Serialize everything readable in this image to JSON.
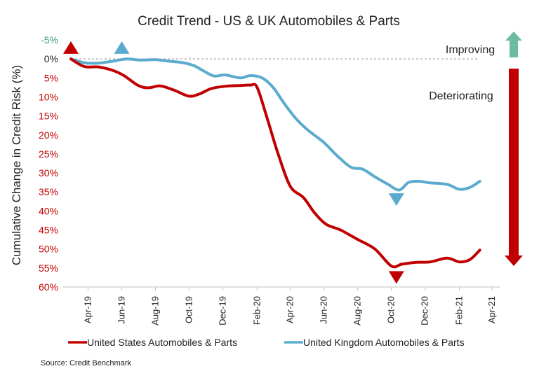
{
  "chart_data": {
    "type": "line",
    "title": "Credit Trend - US & UK Automobiles & Parts",
    "ylabel": "Cumulative Change in Credit Risk (%)",
    "xlabel": "",
    "y_axis_inverted": true,
    "ylim": [
      -5,
      60
    ],
    "y_ticks": [
      {
        "value": -5,
        "label": "-5%"
      },
      {
        "value": 0,
        "label": "0%"
      },
      {
        "value": 5,
        "label": "5%"
      },
      {
        "value": 10,
        "label": "10%"
      },
      {
        "value": 15,
        "label": "15%"
      },
      {
        "value": 20,
        "label": "20%"
      },
      {
        "value": 25,
        "label": "25%"
      },
      {
        "value": 30,
        "label": "30%"
      },
      {
        "value": 35,
        "label": "35%"
      },
      {
        "value": 40,
        "label": "40%"
      },
      {
        "value": 45,
        "label": "45%"
      },
      {
        "value": 50,
        "label": "50%"
      },
      {
        "value": 55,
        "label": "55%"
      },
      {
        "value": 60,
        "label": "60%"
      }
    ],
    "x_range": [
      "2019-02-15",
      "2021-04-15"
    ],
    "x_ticks": [
      {
        "date": "2019-04-01",
        "label": "Apr-19"
      },
      {
        "date": "2019-06-01",
        "label": "Jun-19"
      },
      {
        "date": "2019-08-01",
        "label": "Aug-19"
      },
      {
        "date": "2019-10-01",
        "label": "Oct-19"
      },
      {
        "date": "2019-12-01",
        "label": "Dec-19"
      },
      {
        "date": "2020-02-01",
        "label": "Feb-20"
      },
      {
        "date": "2020-04-01",
        "label": "Apr-20"
      },
      {
        "date": "2020-06-01",
        "label": "Jun-20"
      },
      {
        "date": "2020-08-01",
        "label": "Aug-20"
      },
      {
        "date": "2020-10-01",
        "label": "Oct-20"
      },
      {
        "date": "2020-12-01",
        "label": "Dec-20"
      },
      {
        "date": "2021-02-01",
        "label": "Feb-21"
      },
      {
        "date": "2021-04-01",
        "label": "Apr-21"
      }
    ],
    "series": [
      {
        "name": "United States Automobiles & Parts",
        "color": "#c00000",
        "points": [
          [
            "2019-03-01",
            0.0
          ],
          [
            "2019-03-25",
            2.0
          ],
          [
            "2019-04-20",
            2.1
          ],
          [
            "2019-05-15",
            3.0
          ],
          [
            "2019-06-05",
            4.4
          ],
          [
            "2019-07-01",
            7.0
          ],
          [
            "2019-07-20",
            7.6
          ],
          [
            "2019-08-10",
            7.1
          ],
          [
            "2019-09-05",
            8.3
          ],
          [
            "2019-10-01",
            9.8
          ],
          [
            "2019-10-20",
            9.2
          ],
          [
            "2019-11-10",
            7.8
          ],
          [
            "2019-12-05",
            7.2
          ],
          [
            "2020-01-01",
            7.0
          ],
          [
            "2020-01-20",
            6.9
          ],
          [
            "2020-02-01",
            7.5
          ],
          [
            "2020-02-20",
            16.0
          ],
          [
            "2020-03-10",
            25.0
          ],
          [
            "2020-04-01",
            33.5
          ],
          [
            "2020-04-25",
            36.5
          ],
          [
            "2020-05-15",
            40.5
          ],
          [
            "2020-06-05",
            43.5
          ],
          [
            "2020-07-01",
            45.0
          ],
          [
            "2020-08-01",
            47.5
          ],
          [
            "2020-09-01",
            50.0
          ],
          [
            "2020-10-01",
            54.5
          ],
          [
            "2020-10-20",
            54.0
          ],
          [
            "2020-11-15",
            53.5
          ],
          [
            "2020-12-10",
            53.4
          ],
          [
            "2021-01-10",
            52.4
          ],
          [
            "2021-02-01",
            53.4
          ],
          [
            "2021-02-20",
            52.8
          ],
          [
            "2021-03-10",
            50.3
          ]
        ]
      },
      {
        "name": "United Kingdom Automobiles & Parts",
        "color": "#5aabcd",
        "points": [
          [
            "2019-03-01",
            0.0
          ],
          [
            "2019-03-25",
            1.0
          ],
          [
            "2019-04-20",
            1.1
          ],
          [
            "2019-05-20",
            0.5
          ],
          [
            "2019-06-10",
            0.0
          ],
          [
            "2019-07-05",
            0.3
          ],
          [
            "2019-08-01",
            0.2
          ],
          [
            "2019-08-25",
            0.6
          ],
          [
            "2019-09-20",
            1.0
          ],
          [
            "2019-10-10",
            1.8
          ],
          [
            "2019-10-25",
            3.0
          ],
          [
            "2019-11-15",
            4.5
          ],
          [
            "2019-12-05",
            4.2
          ],
          [
            "2020-01-01",
            5.0
          ],
          [
            "2020-01-20",
            4.4
          ],
          [
            "2020-02-10",
            5.0
          ],
          [
            "2020-03-01",
            7.5
          ],
          [
            "2020-03-20",
            11.5
          ],
          [
            "2020-04-10",
            15.5
          ],
          [
            "2020-05-01",
            18.5
          ],
          [
            "2020-06-01",
            22.0
          ],
          [
            "2020-06-25",
            25.5
          ],
          [
            "2020-07-20",
            28.5
          ],
          [
            "2020-08-10",
            29.0
          ],
          [
            "2020-09-01",
            31.0
          ],
          [
            "2020-09-25",
            33.0
          ],
          [
            "2020-10-15",
            34.5
          ],
          [
            "2020-11-01",
            32.5
          ],
          [
            "2020-11-20",
            32.2
          ],
          [
            "2020-12-10",
            32.6
          ],
          [
            "2021-01-10",
            33.0
          ],
          [
            "2021-02-01",
            34.3
          ],
          [
            "2021-02-20",
            33.8
          ],
          [
            "2021-03-10",
            32.2
          ]
        ]
      }
    ],
    "annotations": {
      "improving": {
        "label": "Improving",
        "color": "#6dbba1"
      },
      "deteriorating": {
        "label": "Deteriorating",
        "color": "#c00000"
      }
    },
    "markers": [
      {
        "name": "us-start-up-triangle-icon",
        "date": "2019-03-01",
        "value": -3.0,
        "direction": "up",
        "color": "#c00000"
      },
      {
        "name": "uk-start-up-triangle-icon",
        "date": "2019-06-01",
        "value": -3.0,
        "direction": "up",
        "color": "#5aabcd"
      },
      {
        "name": "uk-low-down-triangle-icon",
        "date": "2020-10-10",
        "value": 37.0,
        "direction": "down",
        "color": "#5aabcd"
      },
      {
        "name": "us-low-down-triangle-icon",
        "date": "2020-10-10",
        "value": 57.5,
        "direction": "down",
        "color": "#c00000"
      }
    ],
    "colors": {
      "improving_tick": "#3c9a7c",
      "deteriorating_tick": "#c00000",
      "zero_tick": "#222222"
    },
    "grid": false,
    "legend_position": "bottom"
  },
  "source": "Source: Credit Benchmark"
}
